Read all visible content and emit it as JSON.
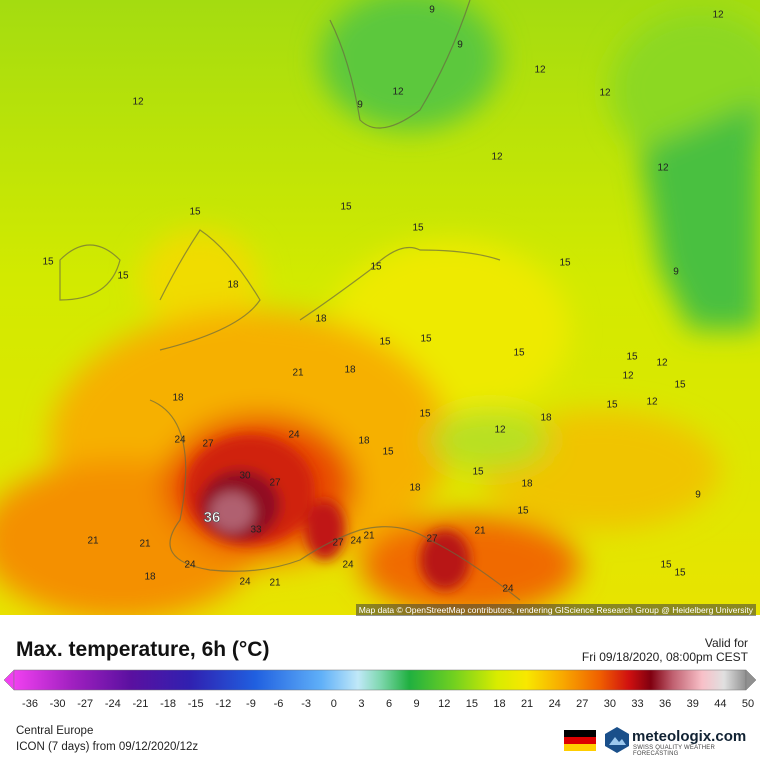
{
  "title": "Max. temperature, 6h (°C)",
  "valid_label": "Valid for",
  "valid_time": "Fri 09/18/2020, 08:00pm CEST",
  "colorbar": {
    "ticks": [
      -36,
      -30,
      -27,
      -24,
      -21,
      -18,
      -15,
      -12,
      -9,
      -6,
      -3,
      0,
      3,
      6,
      9,
      12,
      15,
      18,
      21,
      24,
      27,
      30,
      33,
      36,
      39,
      44,
      50
    ]
  },
  "region": "Central Europe",
  "model": "ICON (7 days) from 09/12/2020/12z",
  "logo": {
    "name": "meteologix.com",
    "tagline": "SWISS QUALITY WEATHER FORECASTING"
  },
  "map": {
    "attribution": "Map data © OpenStreetMap contributors, rendering GIScience Research Group @ Heidelberg University",
    "contour_labels": [
      9,
      9,
      12,
      12,
      12,
      12,
      9,
      12,
      12,
      12,
      15,
      15,
      15,
      15,
      15,
      18,
      15,
      15,
      9,
      18,
      15,
      15,
      15,
      15,
      12,
      21,
      18,
      12,
      15,
      18,
      15,
      12,
      15,
      18,
      12,
      24,
      27,
      24,
      18,
      15,
      30,
      27,
      15,
      18,
      18,
      9,
      36,
      33,
      15,
      21,
      27,
      21,
      21,
      21,
      27,
      24,
      24,
      18,
      24,
      21,
      24,
      24,
      15,
      15
    ]
  }
}
